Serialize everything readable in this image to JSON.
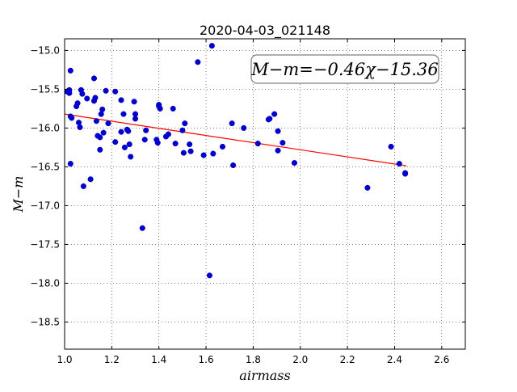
{
  "chart_data": {
    "type": "scatter",
    "title": "2020-04-03_021148",
    "xlabel": "airmass",
    "ylabel": "M−m",
    "xlim": [
      1.0,
      2.7
    ],
    "ylim": [
      -18.85,
      -14.85
    ],
    "y_inverted": true,
    "grid": true,
    "xticks": [
      1.0,
      1.2,
      1.4,
      1.6,
      1.8,
      2.0,
      2.2,
      2.4,
      2.6
    ],
    "yticks": [
      -15.0,
      -15.5,
      -16.0,
      -16.5,
      -17.0,
      -17.5,
      -18.0,
      -18.5
    ],
    "xtick_labels": [
      "1.0",
      "1.2",
      "1.4",
      "1.6",
      "1.8",
      "2.0",
      "2.2",
      "2.4",
      "2.6"
    ],
    "ytick_labels": [
      "−15.0",
      "−15.5",
      "−16.0",
      "−16.5",
      "−17.0",
      "−17.5",
      "−18.0",
      "−18.5"
    ],
    "annotation": "M−m=−0.46χ−15.36",
    "fit": {
      "slope": -0.46,
      "intercept": -15.36,
      "x_range": [
        1.0,
        2.45
      ],
      "color": "#ff0000"
    },
    "marker_color": "#0000cc",
    "points": [
      [
        1.01,
        -15.53
      ],
      [
        1.02,
        -15.51
      ],
      [
        1.02,
        -15.55
      ],
      [
        1.025,
        -15.26
      ],
      [
        1.025,
        -15.85
      ],
      [
        1.03,
        -15.87
      ],
      [
        1.025,
        -16.46
      ],
      [
        1.05,
        -15.72
      ],
      [
        1.055,
        -15.68
      ],
      [
        1.06,
        -15.93
      ],
      [
        1.065,
        -15.99
      ],
      [
        1.07,
        -15.51
      ],
      [
        1.075,
        -15.56
      ],
      [
        1.08,
        -16.75
      ],
      [
        1.095,
        -15.62
      ],
      [
        1.11,
        -16.66
      ],
      [
        1.125,
        -15.36
      ],
      [
        1.125,
        -15.65
      ],
      [
        1.13,
        -15.61
      ],
      [
        1.135,
        -15.91
      ],
      [
        1.14,
        -16.1
      ],
      [
        1.15,
        -16.12
      ],
      [
        1.15,
        -16.28
      ],
      [
        1.155,
        -15.82
      ],
      [
        1.16,
        -15.76
      ],
      [
        1.165,
        -16.06
      ],
      [
        1.175,
        -15.52
      ],
      [
        1.185,
        -15.94
      ],
      [
        1.215,
        -16.18
      ],
      [
        1.215,
        -15.53
      ],
      [
        1.24,
        -15.64
      ],
      [
        1.24,
        -16.05
      ],
      [
        1.25,
        -15.82
      ],
      [
        1.255,
        -16.25
      ],
      [
        1.265,
        -16.02
      ],
      [
        1.27,
        -16.04
      ],
      [
        1.275,
        -16.21
      ],
      [
        1.28,
        -16.37
      ],
      [
        1.295,
        -15.66
      ],
      [
        1.3,
        -15.82
      ],
      [
        1.3,
        -15.88
      ],
      [
        1.33,
        -17.29
      ],
      [
        1.34,
        -16.15
      ],
      [
        1.345,
        -16.03
      ],
      [
        1.39,
        -16.15
      ],
      [
        1.395,
        -16.19
      ],
      [
        1.4,
        -15.7
      ],
      [
        1.4,
        -15.72
      ],
      [
        1.405,
        -15.75
      ],
      [
        1.43,
        -16.11
      ],
      [
        1.44,
        -16.08
      ],
      [
        1.46,
        -15.75
      ],
      [
        1.47,
        -16.2
      ],
      [
        1.5,
        -16.03
      ],
      [
        1.505,
        -16.32
      ],
      [
        1.51,
        -15.94
      ],
      [
        1.53,
        -16.21
      ],
      [
        1.535,
        -16.3
      ],
      [
        1.565,
        -15.15
      ],
      [
        1.59,
        -16.35
      ],
      [
        1.615,
        -17.9
      ],
      [
        1.625,
        -14.94
      ],
      [
        1.63,
        -16.33
      ],
      [
        1.67,
        -16.24
      ],
      [
        1.71,
        -15.94
      ],
      [
        1.715,
        -16.48
      ],
      [
        1.76,
        -16.0
      ],
      [
        1.82,
        -16.2
      ],
      [
        1.865,
        -15.89
      ],
      [
        1.87,
        -15.88
      ],
      [
        1.89,
        -15.82
      ],
      [
        1.905,
        -16.04
      ],
      [
        1.905,
        -16.29
      ],
      [
        1.925,
        -16.19
      ],
      [
        1.975,
        -16.45
      ],
      [
        2.285,
        -16.77
      ],
      [
        2.385,
        -16.24
      ],
      [
        2.42,
        -16.46
      ],
      [
        2.445,
        -16.58
      ],
      [
        2.445,
        -16.59
      ]
    ]
  }
}
